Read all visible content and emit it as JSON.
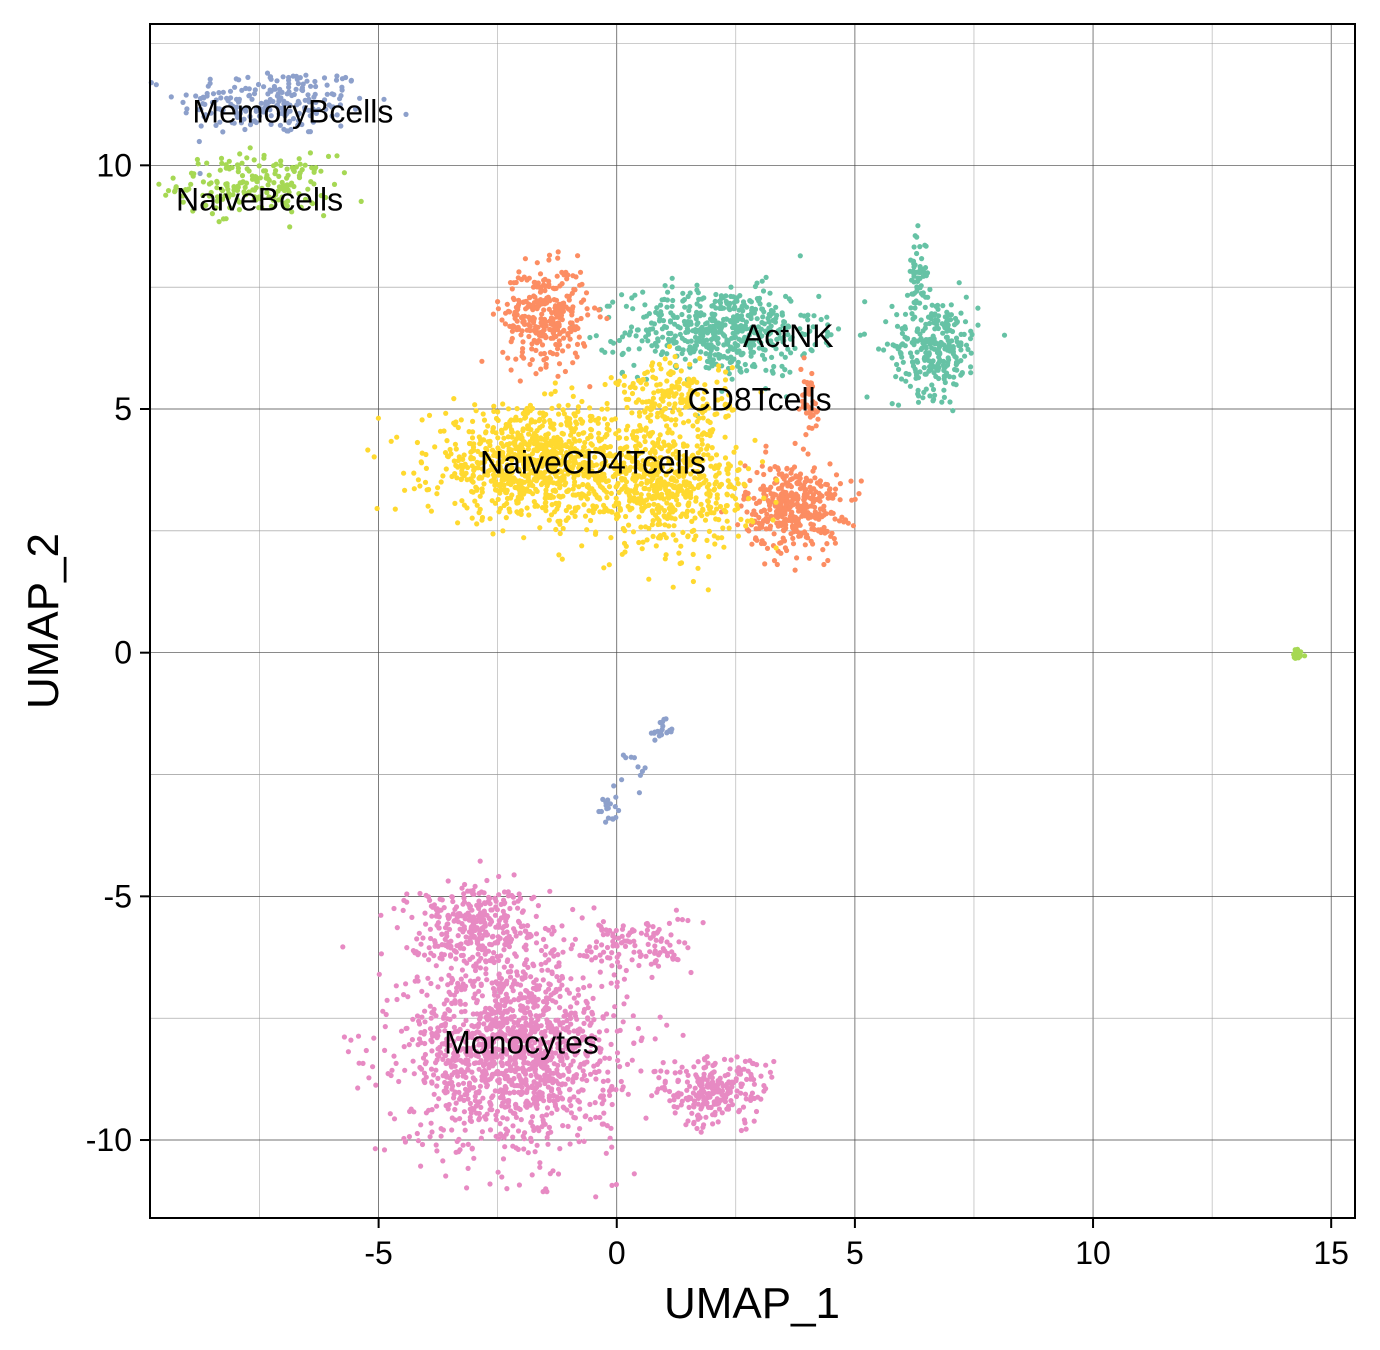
{
  "chart_data": {
    "type": "scatter",
    "title": "",
    "xlabel": "UMAP_1",
    "ylabel": "UMAP_2",
    "xlim": [
      -9.8,
      15.5
    ],
    "ylim": [
      -11.6,
      12.9
    ],
    "xticks": [
      -5,
      0,
      5,
      10,
      15
    ],
    "yticks": [
      -10,
      -5,
      0,
      5,
      10
    ],
    "xtick_labels": [
      "-5",
      "0",
      "5",
      "10",
      "15"
    ],
    "ytick_labels": [
      "-10",
      "-5",
      "0",
      "5",
      "10"
    ],
    "grid": true,
    "legend": "none",
    "cluster_labels": [
      {
        "text": "MemoryBcells",
        "x": -6.8,
        "y": 11.1
      },
      {
        "text": "NaiveBcells",
        "x": -7.5,
        "y": 9.3
      },
      {
        "text": "ActNK",
        "x": 3.6,
        "y": 6.5
      },
      {
        "text": "CD8Tcells",
        "x": 3.0,
        "y": 5.2
      },
      {
        "text": "NaiveCD4Tcells",
        "x": -0.5,
        "y": 3.9
      },
      {
        "text": "Monocytes",
        "x": -2.0,
        "y": -8.0
      }
    ],
    "series": [
      {
        "name": "MemoryBcells",
        "color": "#8DA0CB",
        "clusters": [
          {
            "cx": -7.2,
            "cy": 11.3,
            "sx": 1.0,
            "sy": 0.35,
            "n": 220
          },
          {
            "cx": 0.9,
            "cy": -1.6,
            "sx": 0.15,
            "sy": 0.1,
            "n": 20
          },
          {
            "cx": 0.4,
            "cy": -2.4,
            "sx": 0.12,
            "sy": 0.25,
            "n": 10
          },
          {
            "cx": -0.2,
            "cy": -3.2,
            "sx": 0.1,
            "sy": 0.2,
            "n": 18
          }
        ]
      },
      {
        "name": "NaiveBcells",
        "color": "#A6D854",
        "clusters": [
          {
            "cx": -7.6,
            "cy": 9.6,
            "sx": 0.8,
            "sy": 0.3,
            "n": 200
          },
          {
            "cx": 14.3,
            "cy": -0.05,
            "sx": 0.08,
            "sy": 0.06,
            "n": 20
          }
        ]
      },
      {
        "name": "ActNK",
        "color": "#66C2A5",
        "clusters": [
          {
            "cx": 2.2,
            "cy": 6.6,
            "sx": 1.0,
            "sy": 0.45,
            "n": 550
          },
          {
            "cx": 6.7,
            "cy": 6.3,
            "sx": 0.45,
            "sy": 0.5,
            "n": 280
          },
          {
            "cx": 6.3,
            "cy": 7.8,
            "sx": 0.1,
            "sy": 0.4,
            "n": 50
          }
        ]
      },
      {
        "name": "CD8Tcells",
        "color": "#FC8D62",
        "clusters": [
          {
            "cx": -1.5,
            "cy": 6.9,
            "sx": 0.45,
            "sy": 0.5,
            "n": 320
          },
          {
            "cx": 3.7,
            "cy": 3.0,
            "sx": 0.5,
            "sy": 0.45,
            "n": 400
          },
          {
            "cx": 4.0,
            "cy": 5.1,
            "sx": 0.15,
            "sy": 0.4,
            "n": 40
          }
        ]
      },
      {
        "name": "NaiveCD4Tcells",
        "color": "#FFD92F",
        "clusters": [
          {
            "cx": -1.7,
            "cy": 3.9,
            "sx": 1.1,
            "sy": 0.55,
            "n": 900
          },
          {
            "cx": 1.0,
            "cy": 3.4,
            "sx": 0.9,
            "sy": 0.6,
            "n": 600
          },
          {
            "cx": 1.2,
            "cy": 5.2,
            "sx": 0.6,
            "sy": 0.4,
            "n": 200
          }
        ]
      },
      {
        "name": "Monocytes",
        "color": "#E78AC3",
        "clusters": [
          {
            "cx": -2.2,
            "cy": -8.2,
            "sx": 1.1,
            "sy": 1.0,
            "n": 1400
          },
          {
            "cx": -3.0,
            "cy": -5.6,
            "sx": 0.7,
            "sy": 0.45,
            "n": 350
          },
          {
            "cx": 2.0,
            "cy": -9.0,
            "sx": 0.6,
            "sy": 0.35,
            "n": 250
          },
          {
            "cx": 0.4,
            "cy": -6.0,
            "sx": 0.6,
            "sy": 0.3,
            "n": 120
          }
        ]
      }
    ]
  }
}
